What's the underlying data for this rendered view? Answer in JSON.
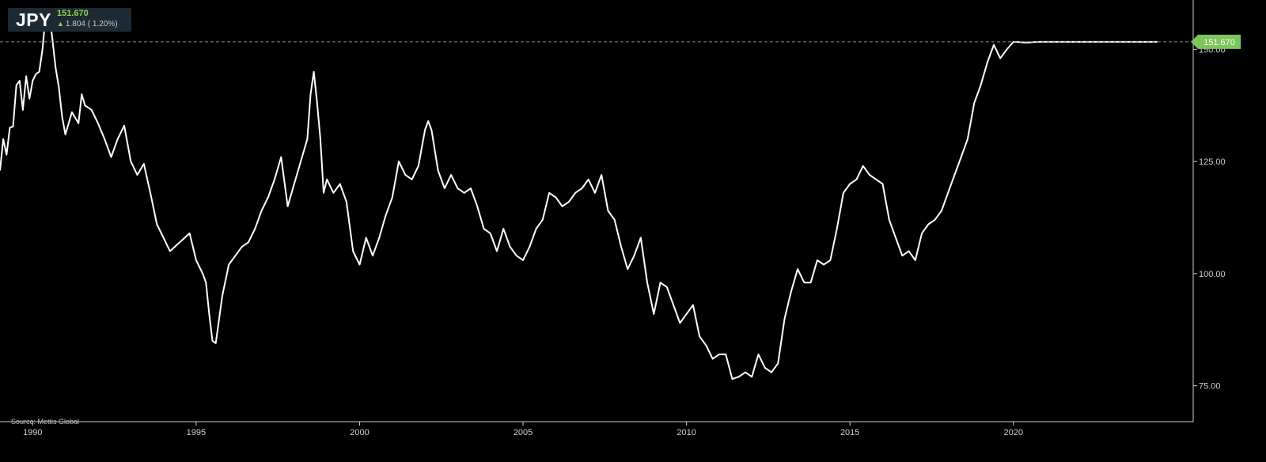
{
  "ticker": {
    "symbol": "JPY",
    "price": "151.670",
    "change": "1.804",
    "change_pct": "( 1.20%)",
    "direction_icon": "up-arrow-icon",
    "up_color": "#8fd14f"
  },
  "source": "Source: Mettis Global",
  "chart_data": {
    "type": "line",
    "title": "",
    "xlabel": "",
    "ylabel": "",
    "x_ticks": [
      "1990",
      "1995",
      "2000",
      "2005",
      "2010",
      "2015",
      "2020"
    ],
    "y_ticks": [
      "75.00",
      "100.00",
      "125.00",
      "150.00"
    ],
    "xlim": [
      1989.0,
      2025.5
    ],
    "ylim": [
      67,
      161
    ],
    "grid": false,
    "legend": "none",
    "line_color": "#ffffff",
    "last_price_label": "151.670",
    "last_price_value": 151.67,
    "last_price_color": "#7cc65b",
    "series": [
      {
        "x": [
          1989.0,
          1989.1,
          1989.2,
          1989.3,
          1989.4,
          1989.5,
          1989.6,
          1989.7,
          1989.8,
          1989.9,
          1990.0,
          1990.1,
          1990.2,
          1990.3,
          1990.4,
          1990.5,
          1990.6,
          1990.7,
          1990.8,
          1990.9,
          1991.0,
          1991.2,
          1991.4,
          1991.5,
          1991.6,
          1991.8,
          1992.0,
          1992.2,
          1992.4,
          1992.6,
          1992.8,
          1993.0,
          1993.2,
          1993.4,
          1993.6,
          1993.8,
          1994.0,
          1994.2,
          1994.5,
          1994.8,
          1995.0,
          1995.2,
          1995.3,
          1995.4,
          1995.5,
          1995.6,
          1995.8,
          1996.0,
          1996.2,
          1996.4,
          1996.6,
          1996.8,
          1997.0,
          1997.2,
          1997.4,
          1997.6,
          1997.8,
          1998.0,
          1998.2,
          1998.4,
          1998.5,
          1998.6,
          1998.7,
          1998.8,
          1998.9,
          1999.0,
          1999.2,
          1999.4,
          1999.6,
          1999.8,
          2000.0,
          2000.2,
          2000.4,
          2000.6,
          2000.8,
          2001.0,
          2001.2,
          2001.4,
          2001.6,
          2001.8,
          2002.0,
          2002.1,
          2002.2,
          2002.4,
          2002.6,
          2002.8,
          2003.0,
          2003.2,
          2003.4,
          2003.6,
          2003.8,
          2004.0,
          2004.2,
          2004.4,
          2004.6,
          2004.8,
          2005.0,
          2005.2,
          2005.4,
          2005.6,
          2005.8,
          2006.0,
          2006.2,
          2006.4,
          2006.6,
          2006.8,
          2007.0,
          2007.2,
          2007.4,
          2007.6,
          2007.8,
          2008.0,
          2008.2,
          2008.4,
          2008.6,
          2008.8,
          2009.0,
          2009.2,
          2009.4,
          2009.6,
          2009.8,
          2010.0,
          2010.2,
          2010.4,
          2010.6,
          2010.8,
          2011.0,
          2011.2,
          2011.4,
          2011.6,
          2011.8,
          2012.0,
          2012.2,
          2012.4,
          2012.6,
          2012.8,
          2013.0,
          2013.2,
          2013.4,
          2013.6,
          2013.8,
          2014.0,
          2014.2,
          2014.4,
          2014.6,
          2014.8,
          2015.0,
          2015.2,
          2015.4,
          2015.6,
          2015.8,
          2016.0,
          2016.2,
          2016.4,
          2016.6,
          2016.8,
          2017.0,
          2017.2,
          2017.4,
          2017.6,
          2017.8,
          2018.0,
          2018.2,
          2018.4,
          2018.6,
          2018.8,
          2019.0,
          2019.2,
          2019.4,
          2019.6,
          2019.8,
          2020.0,
          2020.2,
          2020.4,
          2020.6,
          2020.8,
          2021.0,
          2021.2,
          2021.4,
          2021.6,
          2021.8,
          2022.0,
          2022.2,
          2022.4,
          2022.6,
          2022.8,
          2023.0,
          2023.2,
          2023.4,
          2023.6,
          2023.8,
          2024.0,
          2024.2,
          2024.4
        ],
        "y": [
          123.0,
          130.0,
          126.5,
          132.5,
          132.8,
          142.0,
          143.0,
          136.5,
          144.0,
          139.0,
          143.0,
          144.5,
          145.0,
          150.0,
          158.0,
          158.2,
          152.5,
          146.0,
          141.5,
          135.0,
          131.0,
          136.0,
          133.5,
          140.0,
          137.5,
          136.5,
          133.5,
          130.0,
          126.0,
          130.0,
          133.0,
          125.0,
          122.0,
          124.5,
          118.0,
          111.0,
          108.0,
          105.0,
          107.0,
          109.0,
          103.0,
          100.0,
          98.0,
          91.0,
          85.0,
          84.5,
          95.0,
          102.0,
          104.0,
          106.0,
          107.0,
          110.0,
          114.0,
          117.0,
          121.0,
          126.0,
          115.0,
          120.0,
          125.0,
          130.0,
          140.0,
          145.0,
          138.0,
          130.0,
          118.0,
          121.0,
          118.0,
          120.0,
          116.0,
          105.0,
          102.0,
          108.0,
          104.0,
          108.0,
          113.0,
          117.0,
          125.0,
          122.0,
          121.0,
          124.0,
          132.0,
          134.0,
          132.0,
          123.0,
          119.0,
          122.0,
          119.0,
          118.0,
          119.0,
          115.0,
          110.0,
          109.0,
          105.0,
          110.0,
          106.0,
          104.0,
          103.0,
          106.0,
          110.0,
          112.0,
          118.0,
          117.0,
          115.0,
          116.0,
          118.0,
          119.0,
          121.0,
          118.0,
          122.0,
          114.0,
          112.0,
          106.0,
          101.0,
          104.0,
          108.0,
          98.0,
          91.0,
          98.0,
          97.0,
          93.0,
          89.0,
          91.0,
          93.0,
          86.0,
          84.0,
          81.0,
          82.0,
          82.0,
          76.5,
          77.0,
          78.0,
          77.0,
          82.0,
          79.0,
          78.0,
          80.0,
          90.0,
          96.0,
          101.0,
          98.0,
          98.0,
          103.0,
          102.0,
          103.0,
          110.0,
          118.0,
          120.0,
          121.0,
          124.0,
          122.0,
          121.0,
          120.0,
          112.0,
          108.0,
          104.0,
          105.0,
          103.0,
          109.0,
          111.0,
          112.0,
          114.0,
          118.0,
          122.0,
          126.0,
          130.0,
          138.0,
          142.0,
          147.0,
          151.0,
          148.0,
          150.0,
          151.67,
          151.6,
          151.5,
          151.6,
          151.67,
          151.67,
          151.67,
          151.67,
          151.67,
          151.67,
          151.67,
          151.67,
          151.67,
          151.67,
          151.67,
          151.67,
          151.67,
          151.67,
          151.67,
          151.67,
          151.67,
          151.67,
          151.67
        ]
      }
    ]
  }
}
